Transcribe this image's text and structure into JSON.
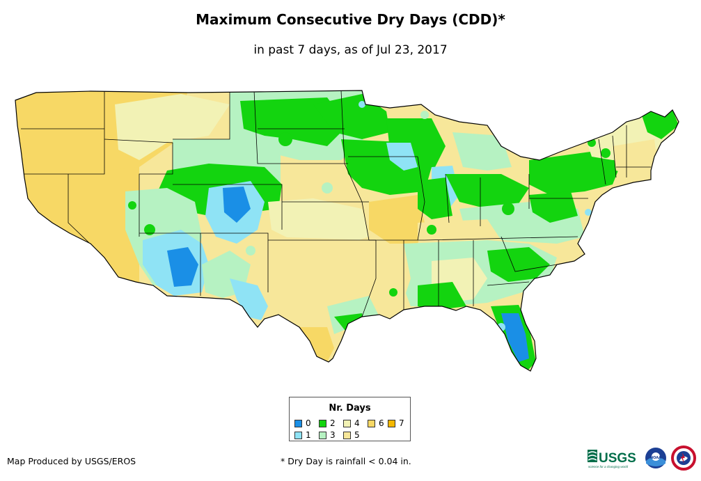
{
  "title": "Maximum Consecutive Dry Days (CDD)*",
  "subtitle": "in past 7 days, as of Jul 23, 2017",
  "legend": {
    "title": "Nr. Days",
    "items": [
      {
        "label": "0",
        "color": "#1a8fe6"
      },
      {
        "label": "1",
        "color": "#8fe3f5"
      },
      {
        "label": "2",
        "color": "#13d40f"
      },
      {
        "label": "3",
        "color": "#b6f2c2"
      },
      {
        "label": "4",
        "color": "#f2f2b5"
      },
      {
        "label": "5",
        "color": "#f7e79a"
      },
      {
        "label": "6",
        "color": "#f7d865"
      },
      {
        "label": "7",
        "color": "#f5b800"
      }
    ]
  },
  "credit": "Map Produced by USGS/EROS",
  "footnote": "* Dry Day is rainfall < 0.04 in.",
  "logos": {
    "usgs": "USGS",
    "usgs_tagline": "science for a changing world",
    "noaa": "NOAA"
  }
}
